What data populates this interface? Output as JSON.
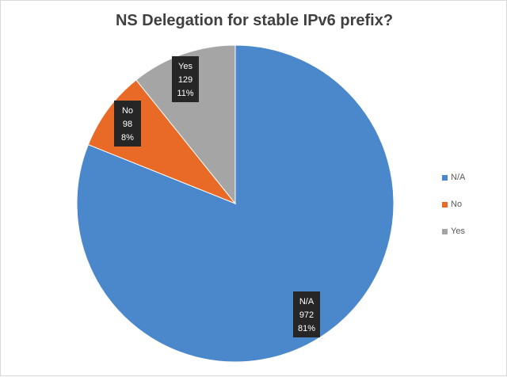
{
  "chart_data": {
    "type": "pie",
    "title": "NS Delegation for stable IPv6 prefix?",
    "slices": [
      {
        "label": "N/A",
        "value": 972,
        "percent": "81%",
        "color": "#4a87cb"
      },
      {
        "label": "No",
        "value": 98,
        "percent": "8%",
        "color": "#e96a27"
      },
      {
        "label": "Yes",
        "value": 129,
        "percent": "11%",
        "color": "#a5a5a5"
      }
    ],
    "legend": {
      "position": "right"
    },
    "data_labels": "label, value, percent"
  }
}
